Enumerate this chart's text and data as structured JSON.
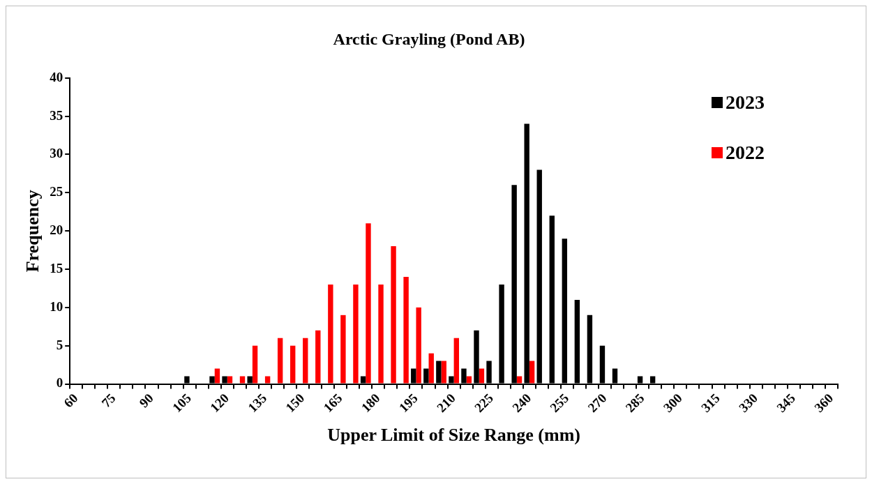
{
  "chart_data": {
    "type": "bar",
    "title": "Arctic Grayling (Pond AB)",
    "xlabel": "Upper Limit of Size Range (mm)",
    "ylabel": "Frequency",
    "categories": [
      "60",
      null,
      null,
      "75",
      null,
      null,
      "90",
      null,
      null,
      "105",
      null,
      null,
      "120",
      null,
      null,
      "135",
      null,
      null,
      "150",
      null,
      null,
      "165",
      null,
      null,
      "180",
      null,
      null,
      "195",
      null,
      null,
      "210",
      null,
      null,
      "225",
      null,
      null,
      "240",
      null,
      null,
      "255",
      null,
      null,
      "270",
      null,
      null,
      "285",
      null,
      null,
      "300",
      null,
      null,
      "315",
      null,
      null,
      "330",
      null,
      null,
      "345",
      null,
      null,
      "360"
    ],
    "series": [
      {
        "name": "2023",
        "color": "#000000",
        "values": [
          0,
          0,
          0,
          0,
          0,
          0,
          0,
          0,
          0,
          1,
          0,
          1,
          1,
          0,
          1,
          0,
          0,
          0,
          0,
          0,
          0,
          0,
          0,
          1,
          0,
          0,
          0,
          2,
          2,
          3,
          1,
          2,
          7,
          3,
          13,
          26,
          34,
          28,
          22,
          19,
          11,
          9,
          5,
          2,
          0,
          1,
          1,
          0,
          0,
          0,
          0,
          0,
          0,
          0,
          0,
          0,
          0,
          0,
          0,
          0,
          0
        ]
      },
      {
        "name": "2022",
        "color": "#ff0000",
        "values": [
          0,
          0,
          0,
          0,
          0,
          0,
          0,
          0,
          0,
          0,
          0,
          2,
          1,
          1,
          5,
          1,
          6,
          5,
          6,
          7,
          13,
          9,
          13,
          21,
          13,
          18,
          14,
          10,
          4,
          3,
          6,
          1,
          2,
          0,
          0,
          1,
          3,
          0,
          0,
          0,
          0,
          0,
          0,
          0,
          0,
          0,
          0,
          0,
          0,
          0,
          0,
          0,
          0,
          0,
          0,
          0,
          0,
          0,
          0,
          0,
          0
        ]
      }
    ],
    "ylim": [
      0,
      40
    ],
    "yticks": [
      0,
      5,
      10,
      15,
      20,
      25,
      30,
      35,
      40
    ],
    "grid": false,
    "legend": "top right"
  }
}
